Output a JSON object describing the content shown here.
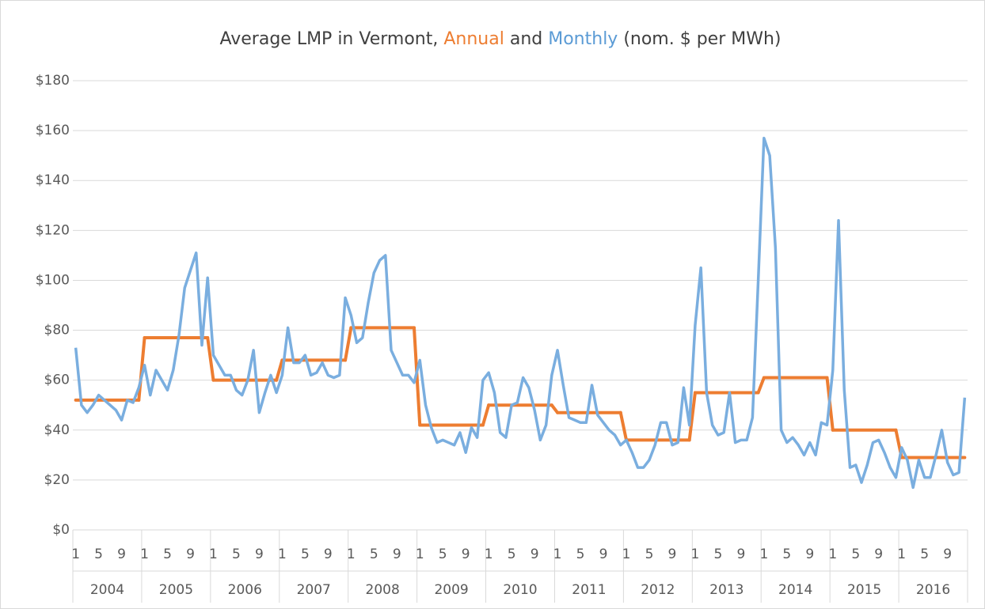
{
  "chart_data": {
    "type": "line",
    "title_parts": [
      {
        "text": "Average LMP in Vermont, ",
        "color": "#404040"
      },
      {
        "text": "Annual",
        "color": "#ed7d31"
      },
      {
        "text": " and ",
        "color": "#404040"
      },
      {
        "text": "Monthly",
        "color": "#5b9bd5"
      },
      {
        "text": " (nom. $ per MWh)",
        "color": "#404040"
      }
    ],
    "categories": [
      "1",
      null,
      null,
      null,
      "5",
      null,
      null,
      null,
      "9",
      null,
      null,
      null,
      "1",
      null,
      null,
      null,
      "5",
      null,
      null,
      null,
      "9",
      null,
      null,
      null,
      "1",
      null,
      null,
      null,
      "5",
      null,
      null,
      null,
      "9",
      null,
      null,
      null,
      "1",
      null,
      null,
      null,
      "5",
      null,
      null,
      null,
      "9",
      null,
      null,
      null,
      "1",
      null,
      null,
      null,
      "5",
      null,
      null,
      null,
      "9",
      null,
      null,
      null,
      "1",
      null,
      null,
      null,
      "5",
      null,
      null,
      null,
      "9",
      null,
      null,
      null,
      "1",
      null,
      null,
      null,
      "5",
      null,
      null,
      null,
      "9",
      null,
      null,
      null,
      "1",
      null,
      null,
      null,
      "5",
      null,
      null,
      null,
      "9",
      null,
      null,
      null,
      "1",
      null,
      null,
      null,
      "5",
      null,
      null,
      null,
      "9",
      null,
      null,
      null,
      "1",
      null,
      null,
      null,
      "5",
      null,
      null,
      null,
      "9",
      null,
      null,
      null,
      "1",
      null,
      null,
      null,
      "5",
      null,
      null,
      null,
      "9",
      null,
      null,
      null,
      "1",
      null,
      null,
      null,
      "5",
      null,
      null,
      null,
      "9",
      null,
      null,
      null,
      "1",
      null,
      null,
      null,
      "5",
      null,
      null,
      null,
      "9",
      null,
      null,
      null
    ],
    "groups": [
      "2004",
      "2005",
      "2006",
      "2007",
      "2008",
      "2009",
      "2010",
      "2011",
      "2012",
      "2013",
      "2014",
      "2015",
      "2016"
    ],
    "monthly": {
      "color": "#7aaedf",
      "values": [
        73,
        50,
        47,
        50,
        54,
        52,
        50,
        48,
        44,
        52,
        51,
        57,
        66,
        54,
        64,
        60,
        56,
        64,
        78,
        97,
        104,
        111,
        74,
        101,
        70,
        66,
        62,
        62,
        56,
        54,
        60,
        72,
        47,
        55,
        62,
        55,
        62,
        81,
        67,
        67,
        70,
        62,
        63,
        67,
        62,
        61,
        62,
        93,
        86,
        75,
        77,
        91,
        103,
        108,
        110,
        72,
        67,
        62,
        62,
        59,
        68,
        50,
        41,
        35,
        36,
        35,
        34,
        39,
        31,
        41,
        37,
        60,
        63,
        55,
        39,
        37,
        50,
        51,
        61,
        57,
        48,
        36,
        42,
        62,
        72,
        58,
        45,
        44,
        43,
        43,
        58,
        46,
        43,
        40,
        38,
        34,
        36,
        31,
        25,
        25,
        28,
        34,
        43,
        43,
        34,
        35,
        57,
        42,
        82,
        105,
        55,
        42,
        38,
        39,
        55,
        35,
        36,
        36,
        45,
        100,
        157,
        150,
        113,
        40,
        35,
        37,
        34,
        30,
        35,
        30,
        43,
        42,
        64,
        124,
        56,
        25,
        26,
        19,
        26,
        35,
        36,
        31,
        25,
        21,
        33,
        28,
        17,
        28,
        21,
        21,
        30,
        40,
        27,
        22,
        23,
        53
      ]
    },
    "annual": {
      "color": "#ed7d31",
      "values": [
        52,
        77,
        60,
        68,
        81,
        42,
        50,
        47,
        36,
        55,
        61,
        40,
        29
      ]
    },
    "ylim": [
      0,
      180
    ],
    "yticks": [
      {
        "value": 0,
        "label": "$0"
      },
      {
        "value": 20,
        "label": "$20"
      },
      {
        "value": 40,
        "label": "$40"
      },
      {
        "value": 60,
        "label": "$60"
      },
      {
        "value": 80,
        "label": "$80"
      },
      {
        "value": 100,
        "label": "$100"
      },
      {
        "value": 120,
        "label": "$120"
      },
      {
        "value": 140,
        "label": "$140"
      },
      {
        "value": 160,
        "label": "$160"
      },
      {
        "value": 180,
        "label": "$180"
      }
    ],
    "grid": true
  }
}
